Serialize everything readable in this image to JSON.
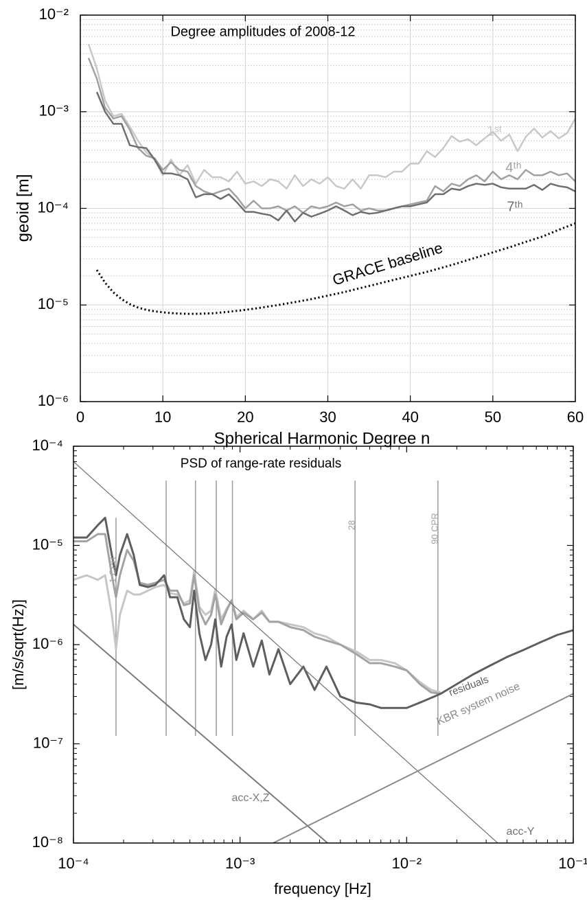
{
  "chart_data": [
    {
      "type": "line",
      "title": "Degree amplitudes of 2008-12",
      "xlabel": "Spherical Harmonic Degree n",
      "ylabel": "geoid [m]",
      "xscale": "linear",
      "yscale": "log",
      "grid": true,
      "minor_grid": true,
      "xlim": [
        0,
        60
      ],
      "ylim": [
        1e-06,
        0.01
      ],
      "xticks": [
        0,
        10,
        20,
        30,
        40,
        50,
        60
      ],
      "yticks": [
        {
          "value": 1e-06,
          "label": "10⁻⁶"
        },
        {
          "value": 1e-05,
          "label": "10⁻⁵"
        },
        {
          "value": 0.0001,
          "label": "10⁻⁴"
        },
        {
          "value": 0.001,
          "label": "10⁻³"
        },
        {
          "value": 0.01,
          "label": "10⁻²"
        }
      ],
      "x": [
        1,
        2,
        3,
        4,
        5,
        6,
        7,
        8,
        9,
        10,
        11,
        12,
        13,
        14,
        15,
        16,
        17,
        18,
        19,
        20,
        21,
        22,
        23,
        24,
        25,
        26,
        27,
        28,
        29,
        30,
        31,
        32,
        33,
        34,
        35,
        36,
        37,
        38,
        39,
        40,
        41,
        42,
        43,
        44,
        45,
        46,
        47,
        48,
        49,
        50,
        51,
        52,
        53,
        54,
        55,
        56,
        57,
        58,
        59,
        60
      ],
      "series": [
        {
          "name": "1ˢᵗ",
          "color": "#c8c8c8",
          "values": [
            0.005,
            0.0028,
            0.0013,
            0.0009,
            0.00095,
            0.0007,
            0.0005,
            0.00038,
            0.00032,
            0.00022,
            0.00032,
            0.00022,
            0.00028,
            0.00018,
            0.00025,
            0.00021,
            0.00021,
            0.00019,
            0.00024,
            0.00018,
            0.00019,
            0.00017,
            0.0002,
            0.00019,
            0.00016,
            0.00022,
            0.00017,
            0.0002,
            0.00018,
            0.00021,
            0.00017,
            0.00016,
            0.0002,
            0.00016,
            0.00022,
            0.00022,
            0.00021,
            0.00024,
            0.00024,
            0.00029,
            0.00029,
            0.00039,
            0.00034,
            0.00042,
            0.00056,
            0.00049,
            0.00052,
            0.00045,
            0.00053,
            0.00062,
            0.0005,
            0.00058,
            0.00039,
            0.00055,
            0.00067,
            0.00054,
            0.00063,
            0.00053,
            0.0006,
            0.00085
          ]
        },
        {
          "name": "4ᵗʰ",
          "color": "#a0a0a0",
          "values": [
            0.0036,
            0.0022,
            0.0011,
            0.00085,
            0.0009,
            0.00065,
            0.00042,
            0.00035,
            0.00033,
            0.00025,
            0.0003,
            0.00025,
            0.00024,
            0.00017,
            0.00015,
            0.00014,
            0.00015,
            0.00016,
            0.00013,
            0.0001,
            0.00012,
            0.0001,
            0.0001,
            0.000105,
            9.5e-05,
            0.000105,
            9e-05,
            0.000105,
            0.0001,
            0.000105,
            0.000115,
            0.000105,
            0.00011,
            9.5e-05,
            0.0001,
            9.5e-05,
            9.5e-05,
            0.0001,
            0.000105,
            0.00011,
            0.000115,
            0.00012,
            0.00017,
            0.00015,
            0.00018,
            0.00017,
            0.0002,
            0.00022,
            0.00019,
            0.00024,
            0.0002,
            0.00022,
            0.0002,
            0.00025,
            0.00022,
            0.00022,
            0.00024,
            0.00022,
            0.00023,
            0.00019
          ]
        },
        {
          "name": "7ᵗʰ",
          "color": "#6e6e6e",
          "values": [
            null,
            0.0016,
            0.001,
            0.00075,
            0.00075,
            0.00045,
            0.00043,
            0.00042,
            0.00032,
            0.00023,
            0.00023,
            0.00022,
            0.0002,
            0.00013,
            0.00014,
            0.00014,
            0.000125,
            0.00014,
            0.000115,
            9.2e-05,
            9.2e-05,
            8.8e-05,
            8.5e-05,
            7.5e-05,
            9.5e-05,
            7.3e-05,
            9e-05,
            8.2e-05,
            8.8e-05,
            9.5e-05,
            0.000105,
            9.5e-05,
            8.5e-05,
            9.2e-05,
            8.8e-05,
            9e-05,
            9.5e-05,
            0.0001,
            0.000105,
            0.000105,
            0.00011,
            0.000115,
            0.00014,
            0.00014,
            0.00016,
            0.000155,
            0.00017,
            0.00018,
            0.000175,
            0.00018,
            0.000165,
            0.00016,
            0.00016,
            0.00016,
            0.000175,
            0.000155,
            0.00018,
            0.00017,
            0.000165,
            0.00015
          ]
        },
        {
          "name": "GRACE baseline",
          "color": "#000000",
          "linestyle": "dotted",
          "x": [
            2,
            3,
            4,
            5,
            6,
            7,
            8,
            9,
            10,
            11,
            12,
            13,
            14,
            15,
            16,
            17,
            18,
            19,
            20,
            22,
            24,
            26,
            28,
            30,
            32,
            34,
            36,
            38,
            40,
            42,
            44,
            46,
            48,
            50,
            52,
            54,
            56,
            58,
            60
          ],
          "values": [
            2.3e-05,
            1.7e-05,
            1.35e-05,
            1.15e-05,
            1.02e-05,
            9.4e-06,
            8.9e-06,
            8.6e-06,
            8.4e-06,
            8.25e-06,
            8.15e-06,
            8.1e-06,
            8.1e-06,
            8.15e-06,
            8.2e-06,
            8.35e-06,
            8.5e-06,
            8.7e-06,
            8.9e-06,
            9.4e-06,
            1e-05,
            1.07e-05,
            1.15e-05,
            1.25e-05,
            1.36e-05,
            1.5e-05,
            1.65e-05,
            1.82e-05,
            2e-05,
            2.2e-05,
            2.45e-05,
            2.75e-05,
            3.1e-05,
            3.5e-05,
            3.95e-05,
            4.5e-05,
            5.1e-05,
            6e-05,
            7e-05
          ]
        }
      ]
    },
    {
      "type": "line",
      "title": "PSD of range-rate residuals",
      "xlabel": "frequency [Hz]",
      "ylabel": "[m/s/sqrt(Hz)]",
      "xscale": "log",
      "yscale": "log",
      "grid": false,
      "minor_ticks": true,
      "xlim": [
        0.0001,
        0.1
      ],
      "ylim": [
        1e-08,
        0.0001
      ],
      "xticks": [
        {
          "value": 0.0001,
          "label": "10⁻⁴"
        },
        {
          "value": 0.001,
          "label": "10⁻³"
        },
        {
          "value": 0.01,
          "label": "10⁻²"
        },
        {
          "value": 0.1,
          "label": "10⁻¹"
        }
      ],
      "yticks": [
        {
          "value": 1e-08,
          "label": "10⁻⁸"
        },
        {
          "value": 1e-07,
          "label": "10⁻⁷"
        },
        {
          "value": 1e-06,
          "label": "10⁻⁶"
        },
        {
          "value": 1e-05,
          "label": "10⁻⁵"
        },
        {
          "value": 0.0001,
          "label": "10⁻⁴"
        }
      ],
      "x": [
        0.0001,
        0.00012,
        0.00014,
        0.000155,
        0.00017,
        0.00018,
        0.00019,
        0.00021,
        0.00023,
        0.00025,
        0.00028,
        0.00031,
        0.00035,
        0.00038,
        0.00042,
        0.00046,
        0.0005,
        0.00053,
        0.00057,
        0.00062,
        0.00067,
        0.00071,
        0.00077,
        0.00083,
        0.00089,
        0.00095,
        0.00105,
        0.0012,
        0.00135,
        0.0015,
        0.0017,
        0.002,
        0.0024,
        0.0028,
        0.0033,
        0.004,
        0.005,
        0.006,
        0.007,
        0.0085,
        0.01,
        0.012,
        0.014,
        0.016,
        0.02,
        0.025,
        0.032,
        0.04,
        0.05,
        0.063,
        0.08,
        0.1
      ],
      "series": [
        {
          "color": "#c6c6c6",
          "values": [
            4.5e-06,
            5e-06,
            4.5e-06,
            5e-06,
            2e-06,
            9e-07,
            2e-06,
            3.5e-06,
            3.2e-06,
            3.2e-06,
            3.5e-06,
            3.8e-06,
            4e-06,
            3.3e-06,
            3.2e-06,
            2.6e-06,
            2.8e-06,
            5.5e-06,
            2.4e-06,
            2e-06,
            2.2e-06,
            3.6e-06,
            1.8e-06,
            2.3e-06,
            2.8e-06,
            1.9e-06,
            2.2e-06,
            1.8e-06,
            2.2e-06,
            1.7e-06,
            1.7e-06,
            1.6e-06,
            1.5e-06,
            1.3e-06,
            1.2e-06,
            1e-06,
            8.5e-07,
            7e-07,
            7e-07,
            6.5e-07,
            5.5e-07,
            4.2e-07,
            3.5e-07,
            3.3e-07,
            null,
            null,
            null,
            null,
            null,
            null,
            null,
            null
          ]
        },
        {
          "color": "#a3a3a3",
          "values": [
            1.1e-05,
            1.1e-05,
            1.3e-05,
            1.3e-05,
            5e-06,
            3e-06,
            5e-06,
            9e-06,
            7e-06,
            4.2e-06,
            4e-06,
            4.2e-06,
            4.5e-06,
            3.5e-06,
            3.5e-06,
            2.5e-06,
            2.6e-06,
            5e-06,
            2.2e-06,
            1.6e-06,
            2e-06,
            3.2e-06,
            1.6e-06,
            2.2e-06,
            2.8e-06,
            1.8e-06,
            2.1e-06,
            1.8e-06,
            2.1e-06,
            1.7e-06,
            1.7e-06,
            1.5e-06,
            1.4e-06,
            1.2e-06,
            1.1e-06,
            1e-06,
            8e-07,
            6.5e-07,
            6.5e-07,
            6e-07,
            5.5e-07,
            4e-07,
            3.3e-07,
            3.2e-07,
            null,
            null,
            null,
            null,
            null,
            null,
            null,
            null
          ]
        },
        {
          "name": "residuals",
          "color": "#5e5e5e",
          "values": [
            1.2e-05,
            1.2e-05,
            1.6e-05,
            1.9e-05,
            8e-06,
            5e-06,
            8e-06,
            1.3e-05,
            8e-06,
            4e-06,
            3.8e-06,
            4e-06,
            5e-06,
            3e-06,
            3e-06,
            1.8e-06,
            1.5e-06,
            3.5e-06,
            1.3e-06,
            7e-07,
            1e-06,
            1.8e-06,
            6e-07,
            1.2e-06,
            1.6e-06,
            7e-07,
            1.3e-06,
            6e-07,
            1.1e-06,
            5e-07,
            9e-07,
            4e-07,
            6e-07,
            3.5e-07,
            6e-07,
            3e-07,
            2.6e-07,
            2.5e-07,
            2.3e-07,
            2.3e-07,
            2.3e-07,
            2.6e-07,
            2.9e-07,
            3.2e-07,
            4e-07,
            5e-07,
            6.2e-07,
            7.5e-07,
            8.8e-07,
            1.05e-06,
            1.25e-06,
            1.4e-06
          ]
        },
        {
          "name": "acc-Y",
          "color": "#707070",
          "x": [
            0.0001,
            0.0352
          ],
          "values": [
            7e-05,
            1e-08
          ]
        },
        {
          "name": "acc-X,Z",
          "color": "#7a7a7a",
          "x": [
            0.0001,
            0.00335
          ],
          "values": [
            1.6e-06,
            1e-08
          ]
        },
        {
          "name": "KBR system noise",
          "color": "#8a8a8a",
          "x": [
            0.00158,
            0.1
          ],
          "values": [
            1e-08,
            3.2e-07
          ]
        }
      ],
      "vlines": [
        {
          "x": 0.00018,
          "y": [
            1.2e-07,
            1.9e-05
          ],
          "label": "1 CPR"
        },
        {
          "x": 0.00036,
          "y": [
            1.2e-07,
            4.5e-05
          ]
        },
        {
          "x": 0.00054,
          "y": [
            1.2e-07,
            4.5e-05
          ]
        },
        {
          "x": 0.00072,
          "y": [
            1.2e-07,
            4.5e-05
          ]
        },
        {
          "x": 0.0009,
          "y": [
            1.2e-07,
            4.5e-05
          ]
        },
        {
          "x": 0.0049,
          "y": [
            1.2e-07,
            4.5e-05
          ],
          "label": "28"
        },
        {
          "x": 0.0154,
          "y": [
            1.2e-07,
            4.5e-05
          ],
          "label": "90 CPR"
        }
      ],
      "vline_color": "#a0a0a0"
    }
  ]
}
